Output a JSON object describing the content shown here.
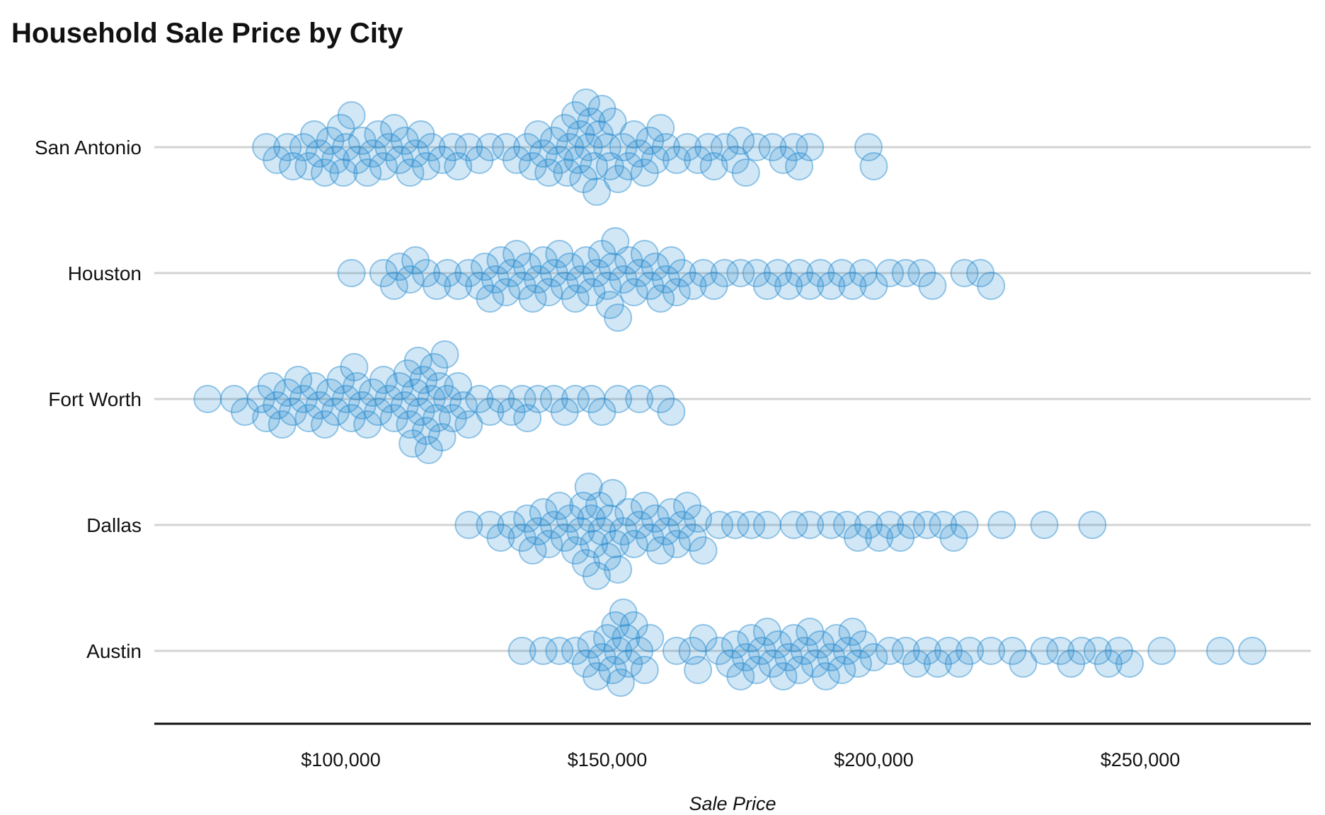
{
  "chart_data": {
    "type": "scatter",
    "subtype": "beeswarm",
    "title": "Household Sale Price by City",
    "xlabel": "Sale Price",
    "ylabel": "",
    "xlim": [
      65000,
      282000
    ],
    "x_ticks": [
      {
        "value": 100000,
        "label": "$100,000"
      },
      {
        "value": 150000,
        "label": "$150,000"
      },
      {
        "value": 200000,
        "label": "$200,000"
      },
      {
        "value": 250000,
        "label": "$250,000"
      }
    ],
    "grid": {
      "horizontal_category_lines": true,
      "vertical": false
    },
    "legend": "none",
    "marker_color": "#1f87cf",
    "categories": [
      "San Antonio",
      "Houston",
      "Fort Worth",
      "Dallas",
      "Austin"
    ],
    "series": [
      {
        "category": "San Antonio",
        "values": [
          86000,
          88000,
          90000,
          91000,
          93000,
          94000,
          95000,
          96000,
          97000,
          98000,
          99000,
          100000,
          100500,
          101000,
          102000,
          103000,
          104000,
          105000,
          106000,
          107000,
          108000,
          109000,
          110000,
          111000,
          112000,
          113000,
          114000,
          115000,
          116000,
          117000,
          119000,
          121000,
          122000,
          124000,
          126000,
          128000,
          131000,
          133000,
          135000,
          136000,
          137000,
          138000,
          139000,
          140000,
          141000,
          142000,
          142500,
          143000,
          144000,
          144500,
          145000,
          145500,
          146000,
          146500,
          147000,
          147500,
          148000,
          148500,
          149000,
          150000,
          150500,
          151000,
          152000,
          153000,
          154000,
          155000,
          156000,
          157000,
          158000,
          159000,
          160000,
          161000,
          163000,
          165000,
          167000,
          169000,
          170000,
          172000,
          174000,
          175000,
          176000,
          178000,
          181000,
          183000,
          185000,
          186000,
          188000,
          199000,
          200000
        ]
      },
      {
        "category": "Houston",
        "values": [
          102000,
          108000,
          110000,
          111000,
          113000,
          114000,
          116000,
          118000,
          120000,
          122000,
          124000,
          126000,
          127000,
          128000,
          129000,
          130000,
          131000,
          132000,
          133000,
          134000,
          135000,
          136000,
          137000,
          138000,
          139000,
          140000,
          141000,
          142000,
          143000,
          144000,
          145000,
          146000,
          147000,
          148000,
          149000,
          150000,
          150500,
          151000,
          151500,
          152000,
          153000,
          154000,
          155000,
          156000,
          157000,
          158000,
          159000,
          160000,
          161000,
          162000,
          163000,
          164000,
          166000,
          168000,
          170000,
          172000,
          175000,
          178000,
          180000,
          182000,
          184000,
          186000,
          188000,
          190000,
          192000,
          194000,
          196000,
          198000,
          200000,
          203000,
          206000,
          209000,
          211000,
          217000,
          220000,
          222000
        ]
      },
      {
        "category": "Fort Worth",
        "values": [
          75000,
          80000,
          82000,
          85000,
          86000,
          87000,
          88000,
          89000,
          90000,
          91000,
          92000,
          93000,
          94000,
          95000,
          96000,
          97000,
          98000,
          99000,
          100000,
          101000,
          102000,
          102500,
          103000,
          104000,
          105000,
          106000,
          107000,
          108000,
          109000,
          110000,
          111000,
          112000,
          112500,
          113000,
          113500,
          114000,
          114500,
          115000,
          115500,
          116000,
          116500,
          117000,
          117500,
          118000,
          118500,
          119000,
          119500,
          120000,
          121000,
          122000,
          123000,
          124000,
          126000,
          128000,
          130000,
          132000,
          134000,
          135000,
          137000,
          140000,
          142000,
          144000,
          147000,
          149000,
          152000,
          156000,
          160000,
          162000
        ]
      },
      {
        "category": "Dallas",
        "values": [
          124000,
          128000,
          130000,
          132000,
          134000,
          135000,
          136000,
          137000,
          138000,
          139000,
          140000,
          141000,
          142000,
          143000,
          144000,
          145000,
          145500,
          146000,
          146500,
          147000,
          147500,
          148000,
          148500,
          149000,
          150000,
          150500,
          151000,
          151500,
          152000,
          153000,
          154000,
          155000,
          156000,
          157000,
          158000,
          159000,
          160000,
          161000,
          162000,
          163000,
          164000,
          165000,
          166000,
          167000,
          168000,
          171000,
          174000,
          177000,
          180000,
          185000,
          188000,
          192000,
          195000,
          197000,
          199000,
          201000,
          203000,
          205000,
          207000,
          210000,
          213000,
          215000,
          217000,
          224000,
          232000,
          241000
        ]
      },
      {
        "category": "Austin",
        "values": [
          134000,
          138000,
          141000,
          144000,
          146000,
          147000,
          148000,
          149000,
          150000,
          151000,
          151500,
          152000,
          152500,
          153000,
          153500,
          154000,
          155000,
          156000,
          157000,
          158000,
          163000,
          166000,
          167000,
          168000,
          171000,
          173000,
          174000,
          175000,
          176000,
          177000,
          178000,
          179000,
          180000,
          181000,
          182000,
          183000,
          184000,
          185000,
          186000,
          187000,
          188000,
          189000,
          190000,
          191000,
          192000,
          193000,
          194000,
          195000,
          196000,
          197000,
          198000,
          200000,
          203000,
          206000,
          208000,
          210000,
          212000,
          214000,
          216000,
          218000,
          222000,
          226000,
          228000,
          232000,
          235000,
          237000,
          239000,
          242000,
          244000,
          246000,
          248000,
          254000,
          265000,
          271000
        ]
      }
    ]
  }
}
